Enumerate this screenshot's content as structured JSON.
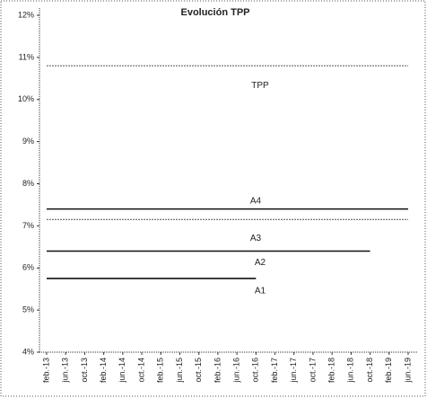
{
  "chart_data": {
    "type": "line",
    "title": "Evolución TPP",
    "categories": [
      "feb.-13",
      "jun.-13",
      "oct.-13",
      "feb.-14",
      "jun.-14",
      "oct.-14",
      "feb.-15",
      "jun.-15",
      "oct.-15",
      "feb.-16",
      "jun.-16",
      "oct.-16",
      "feb.-17",
      "jun.-17",
      "oct.-17",
      "feb.-18",
      "jun.-18",
      "oct.-18",
      "feb.-19",
      "jun.-19"
    ],
    "series": [
      {
        "name": "TPP",
        "color": "#777777",
        "values": [
          10.8,
          10.8,
          10.8,
          10.8,
          10.8,
          10.8,
          10.8,
          10.8,
          10.8,
          10.8,
          10.8,
          10.8,
          10.8,
          10.8,
          10.8,
          10.8,
          10.8,
          10.8,
          10.8,
          10.8
        ]
      },
      {
        "name": "A4",
        "color": "#111111",
        "values": [
          7.4,
          7.4,
          7.4,
          7.4,
          7.4,
          7.4,
          7.4,
          7.4,
          7.4,
          7.4,
          7.4,
          7.4,
          7.4,
          7.4,
          7.4,
          7.4,
          7.4,
          7.4,
          7.4,
          7.4
        ]
      },
      {
        "name": "A3",
        "color": "#777777",
        "values": [
          7.15,
          7.15,
          7.15,
          7.15,
          7.15,
          7.15,
          7.15,
          7.15,
          7.15,
          7.15,
          7.15,
          7.15,
          7.15,
          7.15,
          7.15,
          7.15,
          7.15,
          7.15,
          7.15,
          7.15
        ]
      },
      {
        "name": "A2",
        "color": "#111111",
        "values": [
          6.4,
          6.4,
          6.4,
          6.4,
          6.4,
          6.4,
          6.4,
          6.4,
          6.4,
          6.4,
          6.4,
          6.4,
          6.4,
          6.4,
          6.4,
          6.4,
          6.4,
          6.4,
          null,
          null
        ]
      },
      {
        "name": "A1",
        "color": "#111111",
        "values": [
          5.75,
          5.75,
          5.75,
          5.75,
          5.75,
          5.75,
          5.75,
          5.75,
          5.75,
          5.75,
          5.75,
          5.75,
          null,
          null,
          null,
          null,
          null,
          null,
          null,
          null
        ]
      }
    ],
    "ylim": [
      4,
      12
    ],
    "yticks": [
      {
        "value": 4,
        "label": "4%"
      },
      {
        "value": 5,
        "label": "5%"
      },
      {
        "value": 6,
        "label": "6%"
      },
      {
        "value": 7,
        "label": "7%"
      },
      {
        "value": 8,
        "label": "8%"
      },
      {
        "value": 9,
        "label": "9%"
      },
      {
        "value": 10,
        "label": "10%"
      },
      {
        "value": 11,
        "label": "11%"
      },
      {
        "value": 12,
        "label": "12%"
      }
    ]
  }
}
